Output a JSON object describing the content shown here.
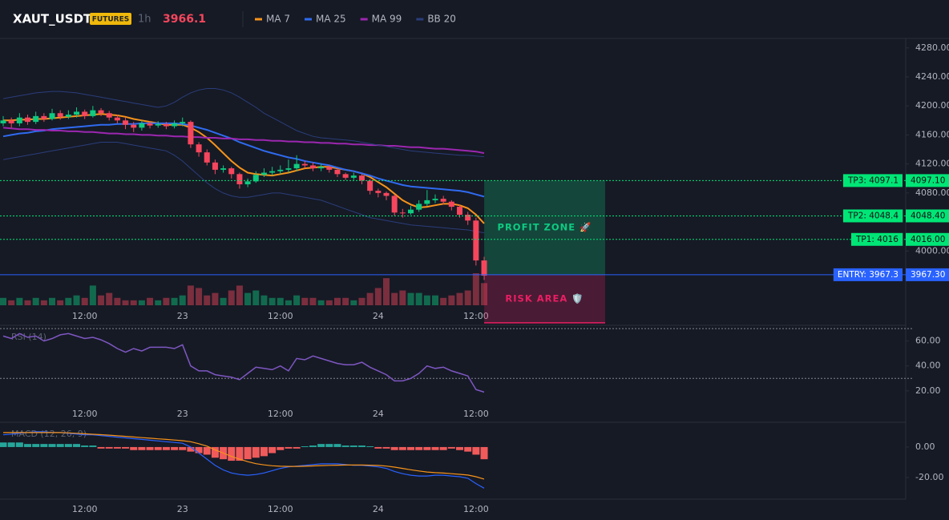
{
  "chart_data": [
    {
      "type": "candlestick",
      "title": "XAUT_USDT",
      "badge": "FUTURES",
      "interval": "1h",
      "last_price": 3966.1,
      "categories": [
        null,
        null,
        null,
        null,
        null,
        null,
        null,
        null,
        null,
        null,
        "12:00",
        null,
        null,
        null,
        null,
        null,
        null,
        null,
        null,
        null,
        null,
        null,
        "23",
        null,
        null,
        null,
        null,
        null,
        null,
        null,
        null,
        null,
        null,
        null,
        "12:00",
        null,
        null,
        null,
        null,
        null,
        null,
        null,
        null,
        null,
        null,
        null,
        "24",
        null,
        null,
        null,
        null,
        null,
        null,
        null,
        null,
        null,
        null,
        null,
        "12:00",
        null
      ],
      "open": [
        4176,
        4180,
        4176,
        4184,
        4178,
        4186,
        4182,
        4190,
        4185,
        4188,
        4192,
        4186,
        4194,
        4190,
        4184,
        4180,
        4174,
        4170,
        4176,
        4173,
        4175,
        4172,
        4176,
        4178,
        4147,
        4136,
        4122,
        4112,
        4114,
        4106,
        4092,
        4096,
        4105,
        4108,
        4110,
        4112,
        4114,
        4120,
        4118,
        4114,
        4116,
        4112,
        4106,
        4101,
        4104,
        4097,
        4083,
        4080,
        4076,
        4053,
        4052,
        4057,
        4065,
        4070,
        4072,
        4068,
        4061,
        4050,
        4042,
        3987
      ],
      "high": [
        4186,
        4184,
        4190,
        4188,
        4192,
        4190,
        4196,
        4194,
        4194,
        4198,
        4195,
        4200,
        4197,
        4193,
        4188,
        4184,
        4178,
        4180,
        4179,
        4179,
        4178,
        4180,
        4184,
        4180,
        4150,
        4140,
        4126,
        4118,
        4116,
        4108,
        4100,
        4110,
        4114,
        4116,
        4118,
        4126,
        4132,
        4124,
        4122,
        4120,
        4118,
        4114,
        4108,
        4108,
        4106,
        4099,
        4086,
        4082,
        4078,
        4058,
        4062,
        4070,
        4084,
        4078,
        4076,
        4070,
        4064,
        4054,
        4046,
        3992
      ],
      "low": [
        4172,
        4170,
        4172,
        4174,
        4175,
        4178,
        4180,
        4181,
        4182,
        4184,
        4182,
        4184,
        4186,
        4180,
        4176,
        4168,
        4164,
        4166,
        4169,
        4170,
        4168,
        4169,
        4172,
        4142,
        4130,
        4118,
        4106,
        4108,
        4100,
        4086,
        4088,
        4094,
        4102,
        4104,
        4106,
        4108,
        4110,
        4114,
        4110,
        4110,
        4108,
        4102,
        4098,
        4098,
        4092,
        4078,
        4074,
        4070,
        4048,
        4046,
        4050,
        4054,
        4062,
        4066,
        4064,
        4056,
        4046,
        4036,
        3980,
        3960
      ],
      "close": [
        4180,
        4176,
        4184,
        4178,
        4186,
        4182,
        4190,
        4185,
        4188,
        4192,
        4186,
        4194,
        4190,
        4184,
        4180,
        4174,
        4170,
        4176,
        4173,
        4175,
        4172,
        4176,
        4178,
        4147,
        4136,
        4122,
        4112,
        4114,
        4106,
        4092,
        4096,
        4105,
        4108,
        4110,
        4112,
        4114,
        4120,
        4118,
        4114,
        4116,
        4112,
        4106,
        4101,
        4104,
        4097,
        4083,
        4080,
        4076,
        4053,
        4052,
        4057,
        4065,
        4070,
        4072,
        4068,
        4061,
        4050,
        4042,
        3987,
        3966
      ],
      "volume": [
        3,
        2,
        3,
        2,
        3,
        2,
        3,
        2,
        3,
        4,
        3,
        8,
        4,
        5,
        3,
        2,
        2,
        2,
        3,
        2,
        3,
        3,
        4,
        8,
        7,
        4,
        5,
        3,
        6,
        8,
        5,
        6,
        4,
        3,
        3,
        2,
        4,
        3,
        3,
        2,
        2,
        3,
        3,
        2,
        3,
        5,
        7,
        11,
        5,
        6,
        5,
        5,
        4,
        4,
        3,
        4,
        5,
        6,
        13,
        9
      ],
      "up_color": "#0ecb81",
      "down_color": "#f6465d",
      "series": [
        {
          "name": "MA 7",
          "color": "#f7931a",
          "values": [
            4180,
            4180,
            4181,
            4181,
            4182,
            4182,
            4183,
            4184,
            4185,
            4186,
            4187,
            4188,
            4189,
            4188,
            4187,
            4185,
            4182,
            4180,
            4178,
            4176,
            4174,
            4174,
            4174,
            4170,
            4164,
            4156,
            4146,
            4135,
            4124,
            4115,
            4108,
            4106,
            4105,
            4104,
            4106,
            4108,
            4111,
            4114,
            4115,
            4116,
            4116,
            4114,
            4112,
            4110,
            4107,
            4102,
            4095,
            4088,
            4079,
            4070,
            4064,
            4060,
            4061,
            4063,
            4065,
            4065,
            4063,
            4059,
            4050,
            4038
          ]
        },
        {
          "name": "MA 25",
          "color": "#2f6bf0",
          "values": [
            4158,
            4160,
            4162,
            4163,
            4165,
            4166,
            4168,
            4169,
            4170,
            4171,
            4172,
            4173,
            4174,
            4174,
            4175,
            4175,
            4175,
            4176,
            4176,
            4176,
            4176,
            4176,
            4175,
            4173,
            4170,
            4167,
            4163,
            4159,
            4155,
            4150,
            4146,
            4142,
            4138,
            4135,
            4132,
            4129,
            4127,
            4124,
            4122,
            4120,
            4118,
            4115,
            4112,
            4110,
            4107,
            4104,
            4100,
            4097,
            4094,
            4091,
            4089,
            4088,
            4087,
            4086,
            4085,
            4084,
            4083,
            4081,
            4078,
            4075
          ]
        },
        {
          "name": "MA 99",
          "color": "#9c27b0",
          "values": [
            4170,
            4169,
            4168,
            4168,
            4167,
            4167,
            4166,
            4166,
            4165,
            4165,
            4164,
            4164,
            4163,
            4162,
            4162,
            4161,
            4161,
            4160,
            4160,
            4159,
            4159,
            4158,
            4158,
            4157,
            4157,
            4156,
            4156,
            4155,
            4155,
            4154,
            4154,
            4153,
            4153,
            4152,
            4152,
            4151,
            4151,
            4150,
            4150,
            4149,
            4149,
            4148,
            4148,
            4147,
            4147,
            4146,
            4146,
            4145,
            4145,
            4144,
            4143,
            4143,
            4142,
            4141,
            4141,
            4140,
            4139,
            4138,
            4137,
            4135
          ]
        },
        {
          "name": "BB 20",
          "color": "#2a3d7a",
          "upper": [
            4210,
            4212,
            4214,
            4216,
            4218,
            4219,
            4220,
            4220,
            4219,
            4218,
            4216,
            4214,
            4212,
            4210,
            4208,
            4206,
            4204,
            4202,
            4200,
            4198,
            4200,
            4205,
            4212,
            4218,
            4222,
            4224,
            4224,
            4222,
            4218,
            4212,
            4205,
            4198,
            4190,
            4184,
            4178,
            4172,
            4166,
            4162,
            4158,
            4156,
            4155,
            4154,
            4153,
            4152,
            4150,
            4148,
            4146,
            4144,
            4142,
            4140,
            4138,
            4137,
            4136,
            4135,
            4134,
            4133,
            4132,
            4132,
            4131,
            4130
          ],
          "lower": [
            4126,
            4128,
            4130,
            4132,
            4134,
            4136,
            4138,
            4140,
            4142,
            4144,
            4146,
            4148,
            4150,
            4150,
            4150,
            4148,
            4146,
            4144,
            4142,
            4140,
            4138,
            4132,
            4124,
            4114,
            4104,
            4094,
            4086,
            4080,
            4076,
            4074,
            4074,
            4076,
            4078,
            4080,
            4080,
            4078,
            4076,
            4074,
            4072,
            4070,
            4066,
            4062,
            4058,
            4054,
            4050,
            4046,
            4044,
            4042,
            4040,
            4038,
            4036,
            4035,
            4034,
            4033,
            4032,
            4031,
            4030,
            4029,
            4027,
            4025
          ]
        }
      ],
      "ylim": [
        3923,
        4293
      ],
      "yticks": [
        {
          "value": 4280,
          "label": "4280.00"
        },
        {
          "value": 4240,
          "label": "4240.00"
        },
        {
          "value": 4200,
          "label": "4200.00"
        },
        {
          "value": 4160,
          "label": "4160.00"
        },
        {
          "value": 4120,
          "label": "4120.00"
        },
        {
          "value": 4080,
          "label": "4080.00"
        },
        {
          "value": 4000,
          "label": "4000.00"
        }
      ],
      "targets": [
        {
          "label": "TP3: 4097.1",
          "value": 4097.1,
          "value_label": "4097.10",
          "color": "#00e676"
        },
        {
          "label": "TP2: 4048.4",
          "value": 4048.4,
          "value_label": "4048.40",
          "color": "#00e676"
        },
        {
          "label": "TP1: 4016",
          "value": 4016,
          "value_label": "4016.00",
          "color": "#00e676"
        }
      ],
      "entry": {
        "label": "ENTRY: 3967.3",
        "value": 3967.3,
        "value_label": "3967.30",
        "color": "#2962ff"
      },
      "profit_zone": {
        "label": "PROFIT ZONE 🚀",
        "color": "#0ecb81"
      },
      "risk_area": {
        "label": "RISK AREA 🛡️",
        "color": "#e91e63",
        "stop": 3901
      }
    },
    {
      "type": "line",
      "title": "RSI (14)",
      "color": "#7e57c2",
      "categories": [
        null,
        null,
        null,
        null,
        null,
        null,
        null,
        null,
        null,
        null,
        "12:00",
        null,
        null,
        null,
        null,
        null,
        null,
        null,
        null,
        null,
        null,
        null,
        "23",
        null,
        null,
        null,
        null,
        null,
        null,
        null,
        null,
        null,
        null,
        null,
        "12:00",
        null,
        null,
        null,
        null,
        null,
        null,
        null,
        null,
        null,
        null,
        null,
        "24",
        null,
        null,
        null,
        null,
        null,
        null,
        null,
        null,
        null,
        null,
        null,
        "12:00",
        null
      ],
      "values": [
        64,
        62,
        66,
        63,
        64,
        60,
        62,
        65,
        66,
        64,
        62,
        63,
        61,
        58,
        54,
        51,
        54,
        52,
        55,
        55,
        55,
        54,
        57,
        40,
        36,
        36,
        33,
        32,
        31,
        29,
        34,
        39,
        38,
        37,
        40,
        36,
        46,
        45,
        48,
        46,
        44,
        42,
        41,
        41,
        43,
        39,
        36,
        33,
        28,
        28,
        30,
        34,
        40,
        38,
        39,
        36,
        34,
        32,
        21,
        19
      ],
      "levels": [
        70,
        30
      ],
      "ylim": [
        7,
        72
      ],
      "yticks": [
        {
          "value": 60,
          "label": "60.00"
        },
        {
          "value": 40,
          "label": "40.00"
        },
        {
          "value": 20,
          "label": "20.00"
        }
      ]
    },
    {
      "type": "macd",
      "title": "MACD (12, 26, 9)",
      "categories": [
        null,
        null,
        null,
        null,
        null,
        null,
        null,
        null,
        null,
        null,
        "12:00",
        null,
        null,
        null,
        null,
        null,
        null,
        null,
        null,
        null,
        null,
        null,
        "23",
        null,
        null,
        null,
        null,
        null,
        null,
        null,
        null,
        null,
        null,
        null,
        "12:00",
        null,
        null,
        null,
        null,
        null,
        null,
        null,
        null,
        null,
        null,
        null,
        "24",
        null,
        null,
        null,
        null,
        null,
        null,
        null,
        null,
        null,
        null,
        null,
        "12:00",
        null
      ],
      "histogram": {
        "up_color": "#26a69a",
        "down_color": "#f05a5a",
        "values": [
          3,
          3,
          3,
          2,
          2,
          2,
          2,
          2,
          2,
          2,
          1,
          1,
          -1,
          -1,
          -1,
          -1,
          -2,
          -2,
          -2,
          -2,
          -2,
          -2,
          -2,
          -3,
          -4,
          -5,
          -7,
          -8,
          -9,
          -9,
          -8,
          -7,
          -6,
          -4,
          -2,
          -1,
          -1,
          0.5,
          1,
          2,
          2,
          2,
          1,
          1,
          1,
          0.5,
          -1,
          -1,
          -2,
          -2,
          -2,
          -2,
          -2,
          -2,
          -2,
          -1,
          -2,
          -3,
          -5,
          -8
        ]
      },
      "macd": {
        "color": "#2962ff",
        "values": [
          8,
          8.5,
          9,
          9.5,
          10,
          10,
          9.5,
          9.5,
          9,
          8.5,
          8,
          8,
          7.5,
          7,
          6.5,
          6,
          5.5,
          5,
          4.5,
          4,
          3.5,
          3,
          2.5,
          0,
          -4,
          -8,
          -12,
          -15,
          -17,
          -18,
          -18.5,
          -18,
          -17,
          -15.5,
          -14,
          -13,
          -12.5,
          -12,
          -11.5,
          -11,
          -11,
          -11,
          -11.5,
          -12,
          -12,
          -12.5,
          -13,
          -14,
          -16,
          -17.5,
          -18.5,
          -19,
          -19,
          -18.5,
          -18.5,
          -19,
          -19.5,
          -20.5,
          -24,
          -27
        ]
      },
      "signal": {
        "color": "#f7931a",
        "values": [
          9.5,
          9.5,
          9.5,
          9.5,
          9.5,
          9.5,
          9.5,
          9.5,
          9.3,
          9,
          8.7,
          8.4,
          8.1,
          7.8,
          7.4,
          7,
          6.6,
          6.2,
          5.8,
          5.4,
          5,
          4.6,
          4.2,
          3.5,
          2.2,
          0.6,
          -1.8,
          -4,
          -6.2,
          -8,
          -9.6,
          -10.9,
          -11.7,
          -12.3,
          -12.6,
          -12.7,
          -12.7,
          -12.6,
          -12.4,
          -12.2,
          -12,
          -11.9,
          -11.8,
          -11.8,
          -11.8,
          -11.9,
          -12.1,
          -12.5,
          -13.2,
          -14,
          -14.9,
          -15.7,
          -16.4,
          -16.8,
          -17.1,
          -17.5,
          -17.9,
          -18.4,
          -19.5,
          -21
        ]
      },
      "ylim": [
        -33.7,
        14.7
      ],
      "yticks": [
        {
          "value": 0,
          "label": "0.00"
        },
        {
          "value": -20,
          "label": "-20.00"
        }
      ]
    }
  ]
}
